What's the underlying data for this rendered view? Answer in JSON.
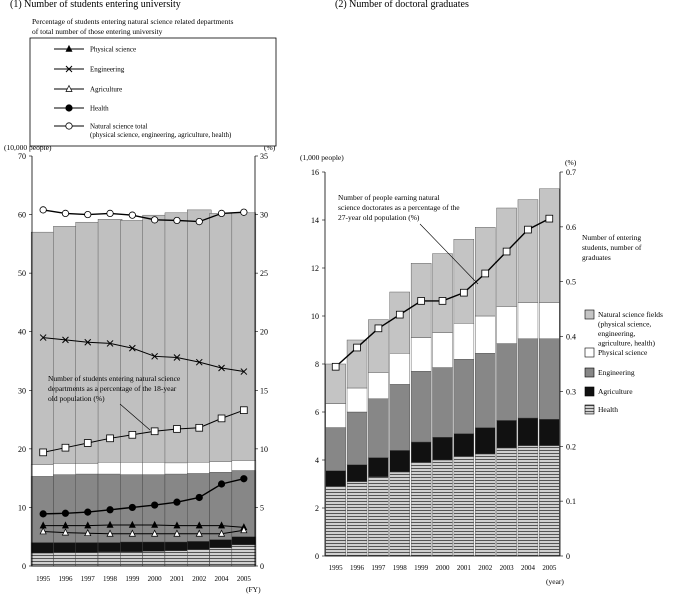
{
  "chart_data": [
    {
      "type": "bar",
      "title": "(1) Number of students entering university",
      "subtitle_lines": [
        "Percentage of students entering natural science related departments",
        "of total number of those entering university"
      ],
      "y_left_unit": "(10,000 people)",
      "y_right_unit": "(%)",
      "x_unit": "(FY)",
      "ylim_left": [
        0,
        70
      ],
      "ylim_right": [
        0,
        35
      ],
      "left_ticks": [
        "0",
        "10",
        "20",
        "30",
        "40",
        "50",
        "60",
        "70"
      ],
      "right_ticks": [
        "0",
        "5",
        "10",
        "15",
        "20",
        "25",
        "30",
        "35"
      ],
      "categories": [
        "1995",
        "1996",
        "1997",
        "1998",
        "1999",
        "2000",
        "2001",
        "2002",
        "2004",
        "2005"
      ],
      "bar_total": [
        57.0,
        58.0,
        58.7,
        59.2,
        59.0,
        59.9,
        60.3,
        60.8,
        60.2,
        60.3
      ],
      "bar_natural_science": [
        15.3,
        15.6,
        15.7,
        15.7,
        15.6,
        15.6,
        15.7,
        15.8,
        16.0,
        16.3
      ],
      "bar_natural_science_top": [
        17.3,
        17.5,
        17.5,
        17.7,
        17.7,
        17.7,
        17.6,
        17.7,
        17.8,
        18.0
      ],
      "bar_health": [
        2.2,
        2.3,
        2.3,
        2.4,
        2.4,
        2.5,
        2.6,
        2.8,
        3.1,
        3.6
      ],
      "bar_agriculture": [
        4.0,
        4.0,
        4.0,
        4.0,
        4.1,
        4.1,
        4.1,
        4.2,
        4.5,
        5.0
      ],
      "series": [
        {
          "name": "Physical science",
          "marker": "triangle-filled",
          "values": [
            3.45,
            3.45,
            3.45,
            3.5,
            3.5,
            3.5,
            3.45,
            3.45,
            3.45,
            3.3
          ]
        },
        {
          "name": "Engineering",
          "marker": "x",
          "values": [
            19.5,
            19.3,
            19.1,
            19.0,
            18.6,
            17.9,
            17.8,
            17.4,
            16.9,
            16.6
          ]
        },
        {
          "name": "Agriculture",
          "marker": "triangle-open",
          "values": [
            2.95,
            2.85,
            2.8,
            2.75,
            2.75,
            2.75,
            2.75,
            2.75,
            2.75,
            3.05
          ]
        },
        {
          "name": "Health",
          "marker": "circle-filled",
          "values": [
            4.45,
            4.5,
            4.6,
            4.8,
            5.0,
            5.2,
            5.45,
            5.85,
            7.0,
            7.45
          ]
        },
        {
          "name": "Natural science total",
          "marker": "circle-open",
          "values": [
            30.4,
            30.1,
            30.0,
            30.1,
            29.95,
            29.55,
            29.5,
            29.4,
            30.1,
            30.2
          ]
        },
        {
          "name": "Number of students entering natural science departments as a percentage of the 18-year old population",
          "marker": "square-open",
          "values": [
            9.7,
            10.1,
            10.5,
            10.9,
            11.2,
            11.5,
            11.7,
            11.8,
            12.6,
            13.3
          ]
        }
      ],
      "legend_entries": [
        {
          "label": "Physical science",
          "marker": "triangle-filled"
        },
        {
          "label": "Engineering",
          "marker": "x"
        },
        {
          "label": "Agriculture",
          "marker": "triangle-open"
        },
        {
          "label": "Health",
          "marker": "circle-filled"
        },
        {
          "label": "Natural science total",
          "sub": "(physical science, engineering, agriculture, health)",
          "marker": "circle-open"
        }
      ],
      "annotation": [
        "Number of students entering natural science",
        "departments as a percentage of the 18-year",
        "old population (%)"
      ]
    },
    {
      "type": "bar",
      "title": "(2) Number of doctoral graduates",
      "y_left_unit": "(1,000 people)",
      "y_right_unit": "(%)",
      "x_unit": "(year)",
      "ylim_left": [
        0,
        16
      ],
      "ylim_right": [
        0,
        0.7
      ],
      "left_ticks": [
        "0",
        "2",
        "4",
        "6",
        "8",
        "10",
        "12",
        "14",
        "16"
      ],
      "right_ticks": [
        "0",
        "0.1",
        "0.2",
        "0.3",
        "0.4",
        "0.5",
        "0.6",
        "0.7"
      ],
      "categories": [
        "1995",
        "1996",
        "1997",
        "1998",
        "1999",
        "2000",
        "2001",
        "2002",
        "2003",
        "2004",
        "2005"
      ],
      "stacks": [
        {
          "name": "Health",
          "values": [
            2.9,
            3.1,
            3.3,
            3.5,
            3.9,
            4.0,
            4.15,
            4.25,
            4.5,
            4.6,
            4.6
          ]
        },
        {
          "name": "Agriculture",
          "values": [
            0.65,
            0.7,
            0.8,
            0.9,
            0.85,
            0.95,
            0.95,
            1.1,
            1.15,
            1.15,
            1.1
          ]
        },
        {
          "name": "Engineering",
          "values": [
            1.8,
            2.2,
            2.45,
            2.75,
            2.95,
            2.9,
            3.1,
            3.1,
            3.2,
            3.3,
            3.35
          ]
        },
        {
          "name": "Physical science",
          "values": [
            1.0,
            1.0,
            1.1,
            1.3,
            1.4,
            1.45,
            1.5,
            1.55,
            1.55,
            1.5,
            1.5
          ]
        },
        {
          "name": "Natural science fields",
          "values": [
            1.65,
            2.0,
            2.2,
            2.55,
            3.1,
            3.3,
            3.5,
            3.7,
            4.1,
            4.3,
            4.75
          ]
        }
      ],
      "series": [
        {
          "name": "Number of people earning natural science doctorates as a percentage of the 27-year old population",
          "marker": "square-open",
          "values": [
            0.345,
            0.38,
            0.415,
            0.44,
            0.465,
            0.465,
            0.48,
            0.515,
            0.555,
            0.595,
            0.615
          ]
        }
      ],
      "legend_entries": [
        {
          "label": "Natural science fields",
          "sub_lines": [
            "(physical science,",
            "engineering,",
            "agriculture, health)"
          ],
          "fill": "light"
        },
        {
          "label": "Physical science",
          "fill": "white"
        },
        {
          "label": "Engineering",
          "fill": "mid"
        },
        {
          "label": "Agriculture",
          "fill": "black"
        },
        {
          "label": "Health",
          "fill": "hatch"
        }
      ],
      "annotation": [
        "Number of people earning natural",
        "science doctorates as a percentage of the",
        "27-year old population (%)"
      ],
      "side_label": [
        "Number of entering",
        "students, number of",
        "graduates"
      ]
    }
  ],
  "colors": {
    "total_bar": "#c0c0c0",
    "white_bar": "#ffffff",
    "engineering_bar": "#878787",
    "agriculture_bar": "#111111",
    "health_bar": "#bdbdbd",
    "light_bar": "#c4c4c4"
  }
}
